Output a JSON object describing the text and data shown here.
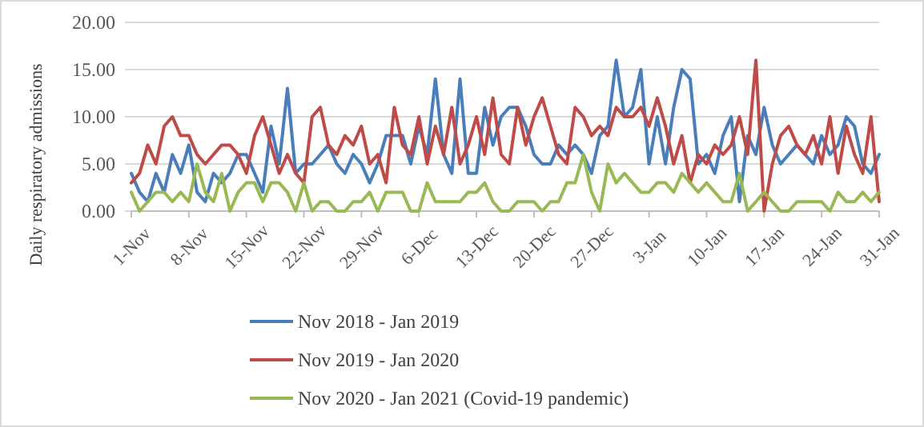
{
  "chart_data": {
    "type": "line",
    "ylabel": "Daily respiratory admissions",
    "categories": [
      "1-Nov",
      null,
      null,
      null,
      null,
      null,
      null,
      "8-Nov",
      null,
      null,
      null,
      null,
      null,
      null,
      "15-Nov",
      null,
      null,
      null,
      null,
      null,
      null,
      "22-Nov",
      null,
      null,
      null,
      null,
      null,
      null,
      "29-Nov",
      null,
      null,
      null,
      null,
      null,
      null,
      "6-Dec",
      null,
      null,
      null,
      null,
      null,
      null,
      "13-Dec",
      null,
      null,
      null,
      null,
      null,
      null,
      "20-Dec",
      null,
      null,
      null,
      null,
      null,
      null,
      "27-Dec",
      null,
      null,
      null,
      null,
      null,
      null,
      "3-Jan",
      null,
      null,
      null,
      null,
      null,
      null,
      "10-Jan",
      null,
      null,
      null,
      null,
      null,
      null,
      "17-Jan",
      null,
      null,
      null,
      null,
      null,
      null,
      "24-Jan",
      null,
      null,
      null,
      null,
      null,
      null,
      "31-Jan"
    ],
    "series": [
      {
        "name": "Nov 2018 - Jan 2019",
        "color": "#4a7ebb",
        "values": [
          4,
          2,
          1,
          4,
          2,
          6,
          4,
          7,
          2,
          1,
          4,
          3,
          4,
          6,
          6,
          4,
          2,
          9,
          5,
          13,
          4,
          5,
          5,
          6,
          7,
          5,
          4,
          6,
          5,
          3,
          5,
          8,
          8,
          8,
          5,
          9,
          6,
          14,
          6,
          4,
          14,
          4,
          4,
          11,
          7,
          10,
          11,
          11,
          9,
          6,
          5,
          5,
          7,
          6,
          7,
          6,
          4,
          8,
          9,
          16,
          10,
          11,
          15,
          5,
          10,
          5,
          11,
          15,
          14,
          5,
          6,
          4,
          8,
          10,
          1,
          8,
          6,
          11,
          7,
          5,
          6,
          7,
          6,
          5,
          8,
          6,
          7,
          10,
          9,
          5,
          4,
          6
        ]
      },
      {
        "name": "Nov 2019 - Jan 2020",
        "color": "#be4b48",
        "values": [
          3,
          4,
          7,
          5,
          9,
          10,
          8,
          8,
          6,
          5,
          6,
          7,
          7,
          6,
          4,
          8,
          10,
          7,
          4,
          6,
          4,
          3,
          10,
          11,
          7,
          6,
          8,
          7,
          9,
          5,
          6,
          3,
          11,
          7,
          6,
          10,
          5,
          9,
          6,
          11,
          5,
          7,
          10,
          6,
          12,
          6,
          5,
          11,
          7,
          10,
          12,
          9,
          6,
          5,
          11,
          10,
          8,
          9,
          8,
          11,
          10,
          10,
          11,
          9,
          12,
          9,
          5,
          8,
          3,
          6,
          5,
          7,
          6,
          7,
          10,
          6,
          16,
          0,
          5,
          8,
          9,
          7,
          6,
          8,
          5,
          10,
          4,
          9,
          6,
          4,
          10,
          1
        ]
      },
      {
        "name": "Nov 2020 - Jan 2021 (Covid-19 pandemic)",
        "color": "#98b954",
        "values": [
          2,
          0,
          1,
          2,
          2,
          1,
          2,
          1,
          5,
          2,
          1,
          4,
          0,
          2,
          3,
          3,
          1,
          3,
          3,
          2,
          0,
          3,
          0,
          1,
          1,
          0,
          0,
          1,
          1,
          2,
          0,
          2,
          2,
          2,
          0,
          0,
          3,
          1,
          1,
          1,
          1,
          2,
          2,
          3,
          1,
          0,
          0,
          1,
          1,
          1,
          0,
          1,
          1,
          3,
          3,
          6,
          2,
          0,
          5,
          3,
          4,
          3,
          2,
          2,
          3,
          3,
          2,
          4,
          3,
          2,
          3,
          2,
          1,
          1,
          4,
          0,
          1,
          2,
          1,
          0,
          0,
          1,
          1,
          1,
          1,
          0,
          2,
          1,
          1,
          2,
          1,
          2
        ]
      }
    ],
    "ylim": [
      0,
      20
    ],
    "yticks": [
      {
        "value": 0,
        "label": "0.00"
      },
      {
        "value": 5,
        "label": "5.00"
      },
      {
        "value": 10,
        "label": "10.00"
      },
      {
        "value": 15,
        "label": "15.00"
      },
      {
        "value": 20,
        "label": "20.00"
      }
    ],
    "grid": "y",
    "legend": "bottom",
    "line_style": "solid",
    "marker": "none"
  }
}
